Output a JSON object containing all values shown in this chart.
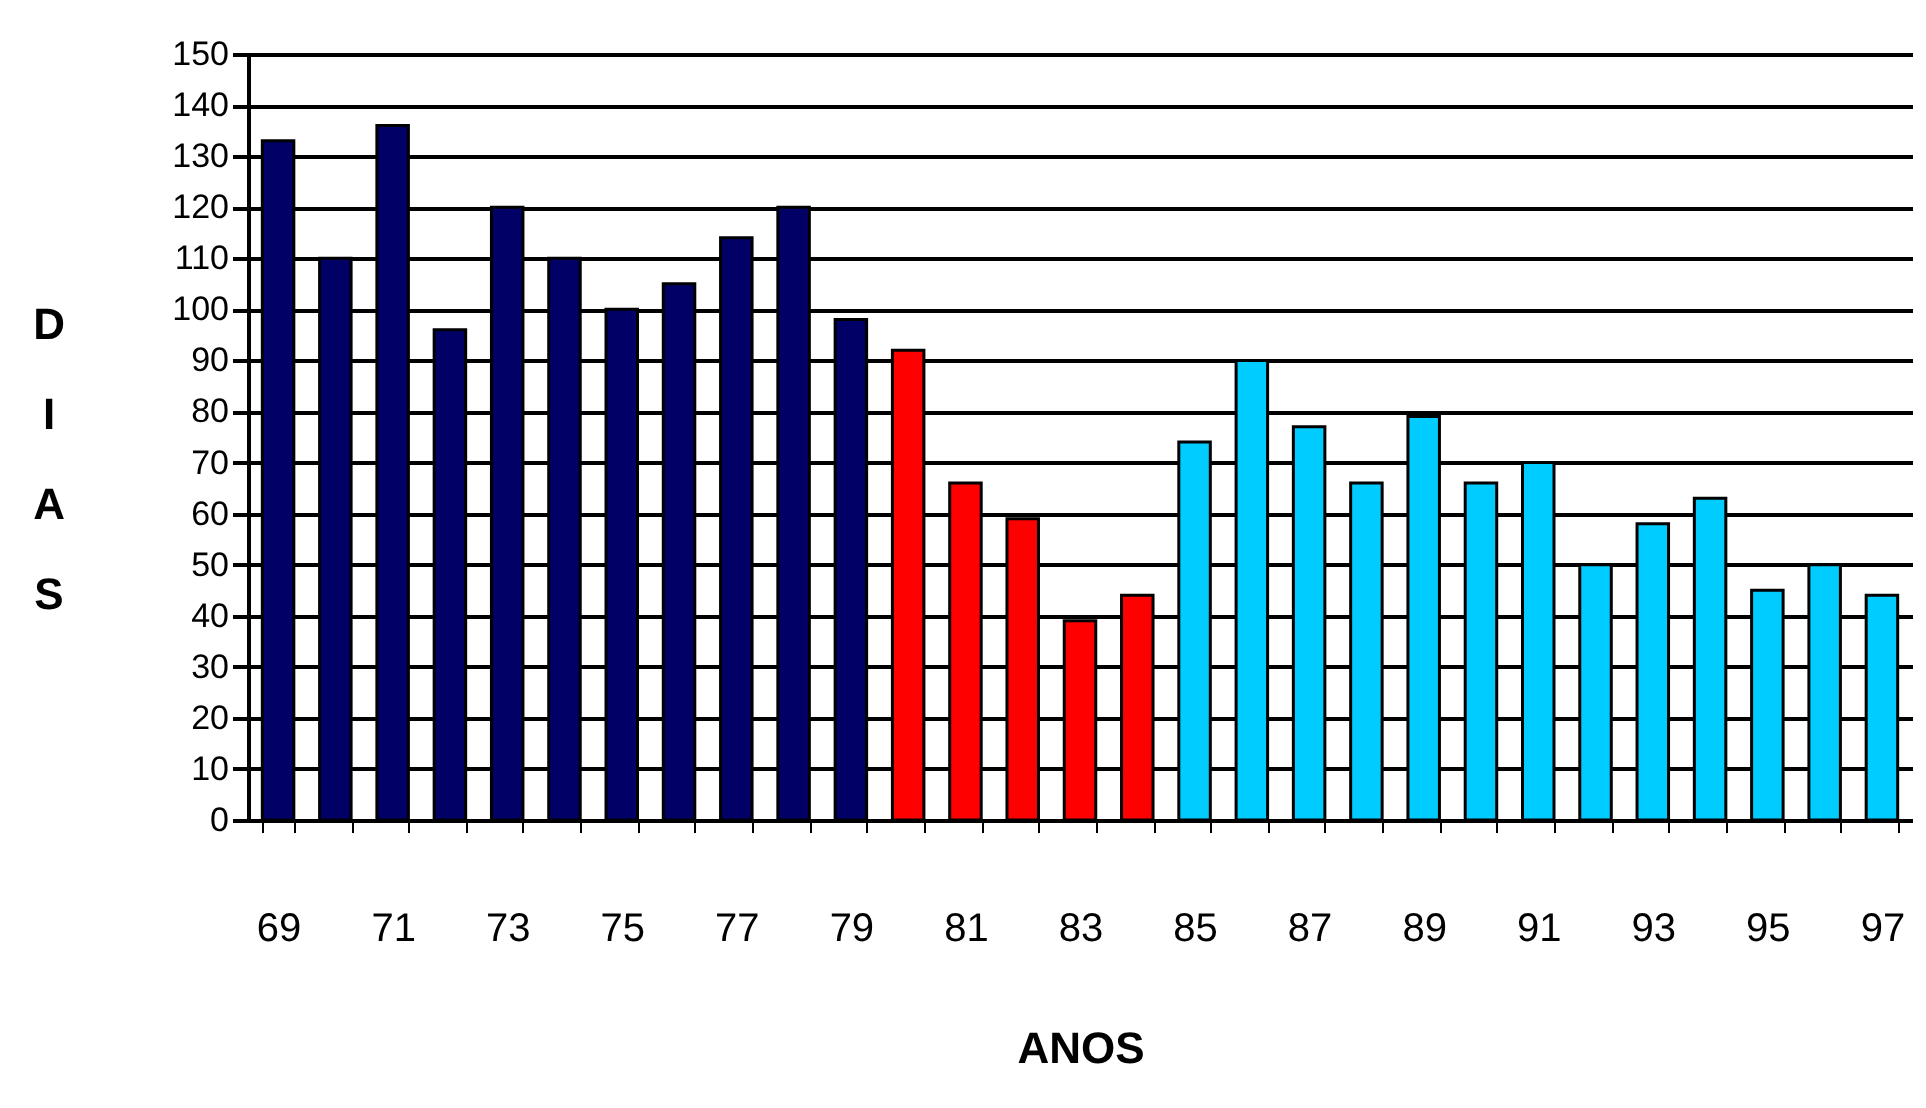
{
  "chart_data": {
    "type": "bar",
    "xlabel": "ANOS",
    "ylabel": "DIAS",
    "categories": [
      "69",
      null,
      "71",
      null,
      "73",
      null,
      "75",
      null,
      "77",
      null,
      "79",
      null,
      "81",
      null,
      "83",
      null,
      "85",
      null,
      "87",
      null,
      "89",
      null,
      "91",
      null,
      "93",
      null,
      "95",
      null,
      "97"
    ],
    "values": [
      133,
      110,
      136,
      96,
      120,
      110,
      100,
      105,
      114,
      120,
      98,
      92,
      66,
      59,
      39,
      44,
      74,
      90,
      77,
      66,
      79,
      66,
      70,
      50,
      58,
      63,
      45,
      50,
      44
    ],
    "colors": [
      "#000066",
      "#000066",
      "#000066",
      "#000066",
      "#000066",
      "#000066",
      "#000066",
      "#000066",
      "#000066",
      "#000066",
      "#000066",
      "#ff0000",
      "#ff0000",
      "#ff0000",
      "#ff0000",
      "#ff0000",
      "#00ccff",
      "#00ccff",
      "#00ccff",
      "#00ccff",
      "#00ccff",
      "#00ccff",
      "#00ccff",
      "#00ccff",
      "#00ccff",
      "#00ccff",
      "#00ccff",
      "#00ccff",
      "#00ccff"
    ],
    "ylim": [
      0,
      150
    ],
    "yticks": [
      0,
      10,
      20,
      30,
      40,
      50,
      60,
      70,
      80,
      90,
      100,
      110,
      120,
      130,
      140,
      150
    ],
    "grid": "y"
  }
}
